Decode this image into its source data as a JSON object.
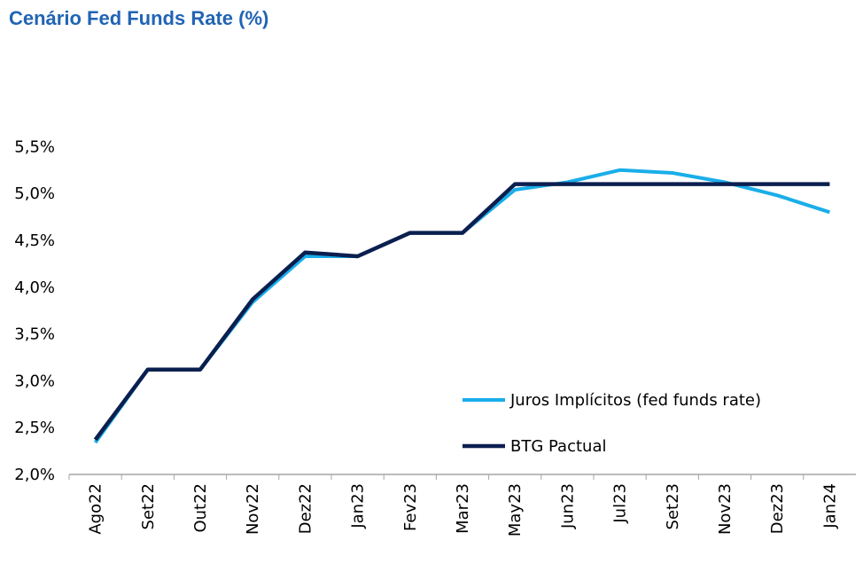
{
  "chart_data": {
    "type": "line",
    "title": "Cenário Fed Funds Rate (%)",
    "categories": [
      "Ago22",
      "Set22",
      "Out22",
      "Nov22",
      "Dez22",
      "Jan23",
      "Fev23",
      "Mar23",
      "May23",
      "Jun23",
      "Jul23",
      "Set23",
      "Nov23",
      "Dez23",
      "Jan24"
    ],
    "y_ticks": [
      "2,0%",
      "2,5%",
      "3,0%",
      "3,5%",
      "4,0%",
      "4,5%",
      "5,0%",
      "5,5%"
    ],
    "ylim": [
      2.0,
      5.5
    ],
    "grid": false,
    "legend_position": "bottom-right",
    "series": [
      {
        "name": "Juros Implícitos (fed funds rate)",
        "color": "#19aee9",
        "values": [
          2.34,
          3.12,
          3.12,
          3.84,
          4.33,
          4.33,
          4.58,
          4.58,
          5.04,
          5.12,
          5.25,
          5.22,
          5.12,
          4.98,
          4.8
        ]
      },
      {
        "name": "BTG Pactual",
        "color": "#0b1f4f",
        "values": [
          2.37,
          3.12,
          3.12,
          3.87,
          4.37,
          4.33,
          4.58,
          4.58,
          5.1,
          5.1,
          5.1,
          5.1,
          5.1,
          5.1,
          5.1
        ]
      }
    ]
  }
}
